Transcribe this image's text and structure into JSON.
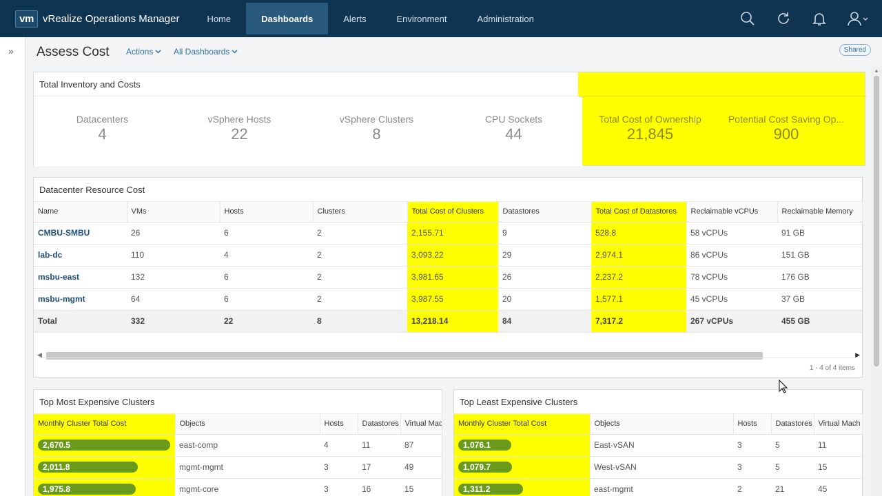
{
  "app": {
    "logo": "vm",
    "product": "vRealize Operations Manager"
  },
  "nav": {
    "tabs": [
      {
        "label": "Home",
        "active": false
      },
      {
        "label": "Dashboards",
        "active": true
      },
      {
        "label": "Alerts",
        "active": false
      },
      {
        "label": "Environment",
        "active": false
      },
      {
        "label": "Administration",
        "active": false
      }
    ]
  },
  "page": {
    "title": "Assess Cost",
    "actions_label": "Actions",
    "dashboards_label": "All Dashboards",
    "shared_badge": "Shared"
  },
  "inventory": {
    "title": "Total Inventory and Costs",
    "kpis": [
      {
        "label": "Datacenters",
        "value": "4"
      },
      {
        "label": "vSphere Hosts",
        "value": "22"
      },
      {
        "label": "vSphere Clusters",
        "value": "8"
      },
      {
        "label": "CPU Sockets",
        "value": "44"
      },
      {
        "label": "Total Cost of Ownership",
        "value": "21,845"
      },
      {
        "label": "Potential Cost Saving Op...",
        "value": "900"
      }
    ]
  },
  "datacenter": {
    "title": "Datacenter Resource Cost",
    "columns": [
      "Name",
      "VMs",
      "Hosts",
      "Clusters",
      "Total Cost of Clusters",
      "Datastores",
      "Total Cost of Datastores",
      "Reclaimable vCPUs",
      "Reclaimable Memory"
    ],
    "rows": [
      [
        "CMBU-SMBU",
        "26",
        "6",
        "2",
        "2,155.71",
        "9",
        "528.8",
        "58 vCPUs",
        "91 GB"
      ],
      [
        "lab-dc",
        "110",
        "4",
        "2",
        "3,093.22",
        "29",
        "2,974.1",
        "86 vCPUs",
        "151 GB"
      ],
      [
        "msbu-east",
        "132",
        "6",
        "2",
        "3,981.65",
        "26",
        "2,237.2",
        "78 vCPUs",
        "176 GB"
      ],
      [
        "msbu-mgmt",
        "64",
        "6",
        "2",
        "3,987.55",
        "20",
        "1,577.1",
        "45 vCPUs",
        "37 GB"
      ]
    ],
    "total": [
      "Total",
      "332",
      "22",
      "8",
      "13,218.14",
      "84",
      "7,317.2",
      "267 vCPUs",
      "455 GB"
    ],
    "pager": "1 - 4 of 4 items"
  },
  "most_expensive": {
    "title": "Top Most Expensive Clusters",
    "columns": [
      "Monthly Cluster Total Cost",
      "Objects",
      "Hosts",
      "Datastores",
      "Virtual Mach"
    ],
    "rows": [
      {
        "cost": "2,670.5",
        "fill": 1.0,
        "object": "east-comp",
        "hosts": "4",
        "datastores": "11",
        "vms": "87"
      },
      {
        "cost": "2,011.8",
        "fill": 0.753,
        "object": "mgmt-mgmt",
        "hosts": "3",
        "datastores": "17",
        "vms": "49"
      },
      {
        "cost": "1,975.8",
        "fill": 0.74,
        "object": "mgmt-core",
        "hosts": "3",
        "datastores": "16",
        "vms": "15"
      }
    ]
  },
  "least_expensive": {
    "title": "Top Least Expensive Clusters",
    "columns": [
      "Monthly Cluster Total Cost",
      "Objects",
      "Hosts",
      "Datastores",
      "Virtual Mach"
    ],
    "rows": [
      {
        "cost": "1,076.1",
        "fill": 0.403,
        "object": "East-vSAN",
        "hosts": "3",
        "datastores": "5",
        "vms": "11"
      },
      {
        "cost": "1,079.7",
        "fill": 0.404,
        "object": "West-vSAN",
        "hosts": "3",
        "datastores": "5",
        "vms": "15"
      },
      {
        "cost": "1,311.2",
        "fill": 0.491,
        "object": "east-mgmt",
        "hosts": "2",
        "datastores": "21",
        "vms": "45"
      }
    ]
  },
  "colors": {
    "nav_bg": "#0f3452",
    "active_tab": "#295a7d",
    "highlight": "#ffff00",
    "bar": "#6a9a1c",
    "link": "#1e4f7c"
  },
  "icons": [
    "search-icon",
    "refresh-icon",
    "bell-icon",
    "user-icon",
    "expand-rail-icon"
  ]
}
